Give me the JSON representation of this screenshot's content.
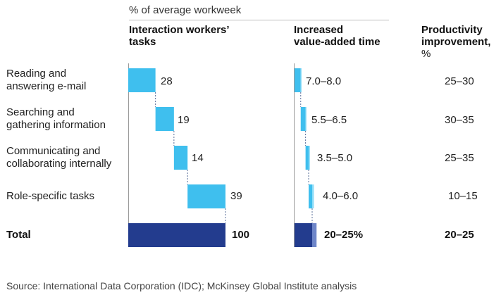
{
  "subtitle": "% of average workweek",
  "headers": {
    "col1": [
      "Interaction workers’",
      "tasks"
    ],
    "col2": [
      "Increased",
      "value-added time"
    ],
    "col3": [
      "Productivity",
      "improvement,",
      "%"
    ]
  },
  "rows": [
    {
      "label": [
        "Reading and",
        "answering e-mail"
      ],
      "value": "28",
      "added": "7.0–8.0",
      "improvement": "25–30"
    },
    {
      "label": [
        "Searching and",
        "gathering information"
      ],
      "value": "19",
      "added": "5.5–6.5",
      "improvement": "30–35"
    },
    {
      "label": [
        "Communicating and",
        "collaborating internally"
      ],
      "value": "14",
      "added": "3.5–5.0",
      "improvement": "25–35"
    },
    {
      "label": [
        "Role-specific tasks"
      ],
      "value": "39",
      "added": "4.0–6.0",
      "improvement": "10–15"
    }
  ],
  "total": {
    "label": "Total",
    "value": "100",
    "added": "20–25%",
    "improvement": "20–25"
  },
  "source": "Source: International Data Corporation (IDC); McKinsey Global Institute analysis",
  "colors": {
    "light": "#3FBFEE",
    "lightEdge": "#8FDDF8",
    "dark": "#233C8E",
    "darkEdge": "#6E86C9",
    "axis": "#9a9a9a",
    "connector": "#5a6f9a"
  },
  "chart_data": {
    "type": "bar",
    "categories": [
      "Reading and answering e-mail",
      "Searching and gathering information",
      "Communicating and collaborating internally",
      "Role-specific tasks",
      "Total"
    ],
    "series": [
      {
        "name": "Interaction workers’ tasks",
        "values": [
          28,
          19,
          14,
          39,
          100
        ]
      },
      {
        "name": "Increased value-added time",
        "values": [
          [
            7.0,
            8.0
          ],
          [
            5.5,
            6.5
          ],
          [
            3.5,
            5.0
          ],
          [
            4.0,
            6.0
          ],
          [
            20,
            25
          ]
        ]
      },
      {
        "name": "Productivity improvement, %",
        "values": [
          [
            25,
            30
          ],
          [
            30,
            35
          ],
          [
            25,
            35
          ],
          [
            10,
            15
          ],
          [
            20,
            25
          ]
        ]
      }
    ]
  }
}
